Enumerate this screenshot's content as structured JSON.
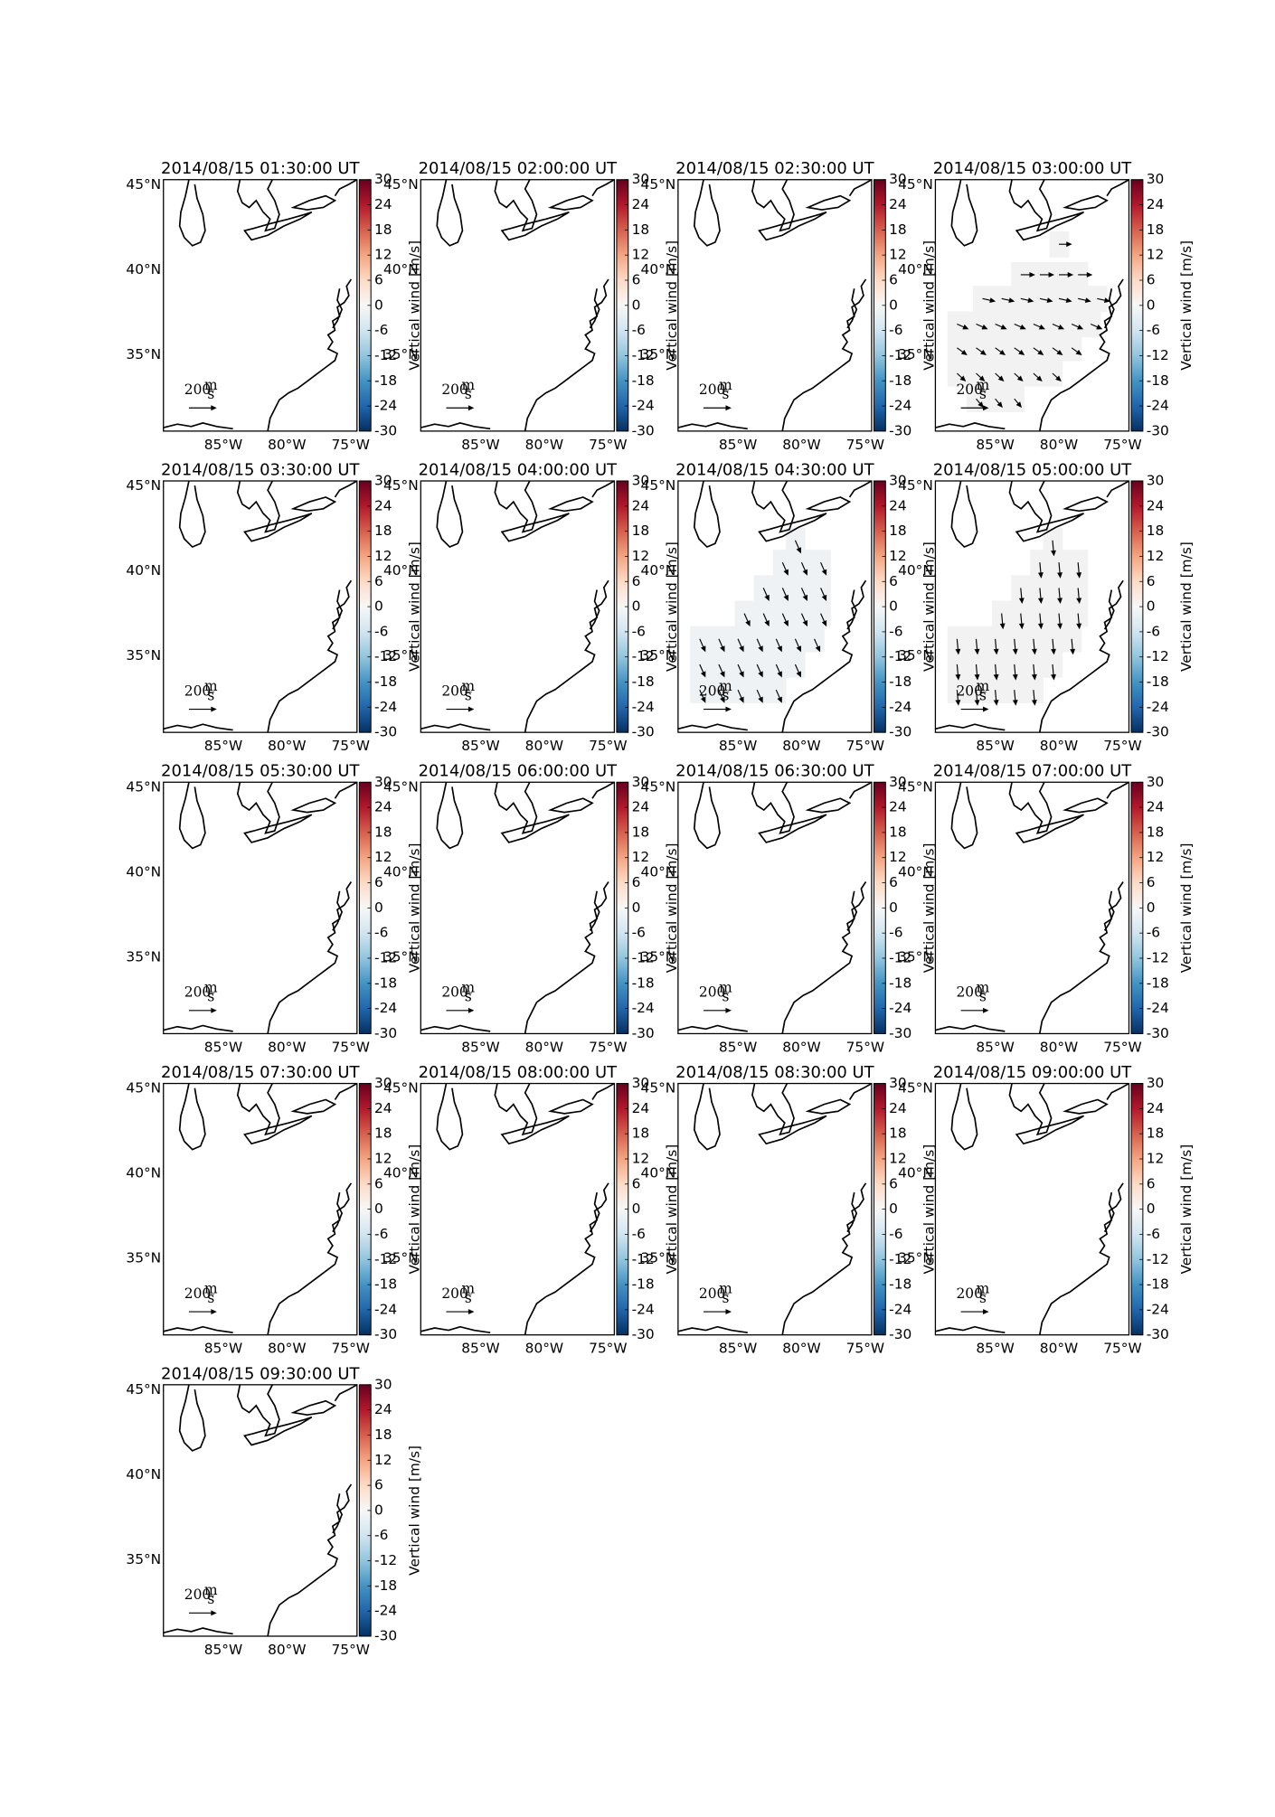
{
  "chart_data": {
    "type": "quiver-map",
    "panels": [
      {
        "title": "2014/08/15 01:30:00 UT"
      },
      {
        "title": "2014/08/15 02:00:00 UT"
      },
      {
        "title": "2014/08/15 02:30:00 UT"
      },
      {
        "title": "2014/08/15 03:00:00 UT",
        "shade": "#f2f2f2",
        "vectors": {
          "lon": [
            -80,
            -83,
            -81.5,
            -80,
            -78.5,
            -86,
            -84.5,
            -83,
            -81.5,
            -80,
            -78.5,
            -77,
            -88,
            -86.5,
            -85,
            -83.5,
            -82,
            -80.5,
            -79,
            -77.5,
            -88,
            -86.5,
            -85,
            -83.5,
            -82,
            -80.5,
            -79,
            -88,
            -86.5,
            -85,
            -83.5,
            -82,
            -80.5,
            -86.5,
            -85,
            -83.5
          ],
          "lat": [
            41.5,
            39.7,
            39.7,
            39.7,
            39.7,
            38.3,
            38.3,
            38.3,
            38.3,
            38.3,
            38.3,
            38.3,
            36.8,
            36.8,
            36.8,
            36.8,
            36.8,
            36.8,
            36.8,
            36.8,
            35.4,
            35.4,
            35.4,
            35.4,
            35.4,
            35.4,
            35.4,
            33.9,
            33.9,
            33.9,
            33.9,
            33.9,
            33.9,
            32.4,
            32.4,
            32.4
          ],
          "u": [
            90,
            100,
            100,
            100,
            100,
            90,
            90,
            90,
            90,
            90,
            90,
            90,
            80,
            80,
            80,
            80,
            80,
            80,
            80,
            80,
            70,
            70,
            70,
            70,
            70,
            70,
            70,
            60,
            60,
            60,
            60,
            60,
            60,
            50,
            50,
            50
          ],
          "v": [
            0,
            0,
            0,
            0,
            0,
            -20,
            -20,
            -20,
            -20,
            -20,
            -20,
            -20,
            -35,
            -35,
            -35,
            -35,
            -35,
            -35,
            -35,
            -35,
            -50,
            -50,
            -50,
            -50,
            -50,
            -50,
            -50,
            -55,
            -55,
            -55,
            -55,
            -55,
            -55,
            -60,
            -60,
            -60
          ]
        }
      },
      {
        "title": "2014/08/15 03:30:00 UT"
      },
      {
        "title": "2014/08/15 04:00:00 UT"
      },
      {
        "title": "2014/08/15 04:30:00 UT",
        "shade": "#eef2f4",
        "vectors": {
          "lon": [
            -80.5,
            -81.5,
            -80,
            -78.5,
            -83,
            -81.5,
            -80,
            -78.5,
            -84.5,
            -83,
            -81.5,
            -80,
            -78.5,
            -88,
            -86.5,
            -85,
            -83.5,
            -82,
            -80.5,
            -79,
            -88,
            -86.5,
            -85,
            -83.5,
            -82,
            -80.5,
            -88,
            -86.5,
            -85,
            -83.5,
            -82
          ],
          "lat": [
            41.8,
            40.5,
            40.5,
            40.5,
            39,
            39,
            39,
            39,
            37.5,
            37.5,
            37.5,
            37.5,
            37.5,
            36,
            36,
            36,
            36,
            36,
            36,
            36,
            34.5,
            34.5,
            34.5,
            34.5,
            34.5,
            34.5,
            33,
            33,
            33,
            33,
            33
          ],
          "u": [
            40,
            40,
            40,
            40,
            40,
            40,
            40,
            40,
            40,
            40,
            40,
            40,
            40,
            40,
            40,
            40,
            40,
            40,
            40,
            40,
            40,
            40,
            40,
            40,
            40,
            40,
            40,
            40,
            40,
            40,
            40
          ],
          "v": [
            -90,
            -90,
            -90,
            -90,
            -90,
            -90,
            -90,
            -90,
            -90,
            -90,
            -90,
            -90,
            -90,
            -90,
            -90,
            -90,
            -90,
            -90,
            -90,
            -90,
            -90,
            -90,
            -90,
            -90,
            -90,
            -90,
            -90,
            -90,
            -90,
            -90,
            -90
          ]
        }
      },
      {
        "title": "2014/08/15 05:00:00 UT",
        "shade": "#f2f2f2",
        "vectors": {
          "lon": [
            -80.5,
            -81.5,
            -80,
            -78.5,
            -83,
            -81.5,
            -80,
            -78.5,
            -84.5,
            -83,
            -81.5,
            -80,
            -78.5,
            -88,
            -86.5,
            -85,
            -83.5,
            -82,
            -80.5,
            -79,
            -88,
            -86.5,
            -85,
            -83.5,
            -82,
            -80.5,
            -88,
            -86.5,
            -85,
            -83.5,
            -82
          ],
          "lat": [
            41.8,
            40.5,
            40.5,
            40.5,
            39,
            39,
            39,
            39,
            37.5,
            37.5,
            37.5,
            37.5,
            37.5,
            36,
            36,
            36,
            36,
            36,
            36,
            36,
            34.5,
            34.5,
            34.5,
            34.5,
            34.5,
            34.5,
            33,
            33,
            33,
            33,
            33
          ],
          "u": [
            10,
            10,
            10,
            10,
            10,
            10,
            10,
            10,
            10,
            10,
            10,
            10,
            10,
            10,
            10,
            10,
            10,
            10,
            10,
            10,
            10,
            10,
            10,
            10,
            10,
            10,
            10,
            10,
            10,
            10,
            10
          ],
          "v": [
            -110,
            -110,
            -110,
            -110,
            -110,
            -110,
            -110,
            -110,
            -110,
            -110,
            -110,
            -110,
            -110,
            -110,
            -110,
            -110,
            -110,
            -110,
            -110,
            -110,
            -110,
            -110,
            -110,
            -110,
            -110,
            -110,
            -110,
            -110,
            -110,
            -110,
            -110
          ]
        }
      },
      {
        "title": "2014/08/15 05:30:00 UT"
      },
      {
        "title": "2014/08/15 06:00:00 UT"
      },
      {
        "title": "2014/08/15 06:30:00 UT"
      },
      {
        "title": "2014/08/15 07:00:00 UT"
      },
      {
        "title": "2014/08/15 07:30:00 UT"
      },
      {
        "title": "2014/08/15 08:00:00 UT"
      },
      {
        "title": "2014/08/15 08:30:00 UT"
      },
      {
        "title": "2014/08/15 09:00:00 UT"
      },
      {
        "title": "2014/08/15 09:30:00 UT"
      }
    ],
    "xlim": [
      -89.7,
      -74.5
    ],
    "ylim": [
      30.5,
      45.3
    ],
    "xticks": [
      {
        "value": -85,
        "label": "85°W"
      },
      {
        "value": -80,
        "label": "80°W"
      },
      {
        "value": -75,
        "label": "75°W"
      }
    ],
    "yticks": [
      {
        "value": 35,
        "label": "35°N"
      },
      {
        "value": 40,
        "label": "40°N"
      },
      {
        "value": 45,
        "label": "45°N"
      }
    ],
    "quiver_key": {
      "value": 200,
      "unit_top": "m",
      "unit_bottom": "s"
    },
    "colorbar": {
      "label": "Vertical wind [m/s]",
      "lim": [
        -30,
        30
      ],
      "ticks": [
        -30,
        -24,
        -18,
        -12,
        -6,
        0,
        6,
        12,
        18,
        24,
        30
      ],
      "colors": [
        "#053061",
        "#2166ac",
        "#4393c3",
        "#92c5de",
        "#d1e5f0",
        "#f7f7f7",
        "#fddbc7",
        "#f4a582",
        "#d6604d",
        "#b2182b",
        "#67001f"
      ]
    }
  }
}
